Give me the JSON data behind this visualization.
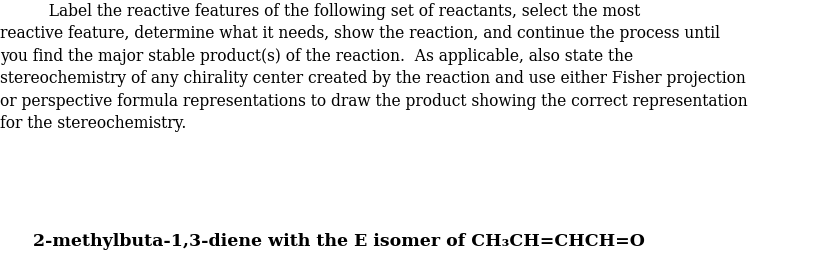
{
  "background_color": "#ffffff",
  "line1": "          Label the reactive features of the following set of reactants, select the most",
  "line2": "reactive feature, determine what it needs, show the reaction, and continue the process until",
  "line3": "you find the major stable product(s) of the reaction.  As applicable, also state the",
  "line4": "stereochemistry of any chirality center created by the reaction and use either Fisher projection",
  "line5": "or perspective formula representations to draw the product showing the correct representation",
  "line6": "for the stereochemistry.",
  "bold_line": "2-methylbuta-1,3-diene with the E isomer of CH₃CH=CHCH=O",
  "para_fontsize": 11.2,
  "bold_fontsize": 12.5,
  "fig_width": 8.13,
  "fig_height": 2.66,
  "dpi": 100
}
